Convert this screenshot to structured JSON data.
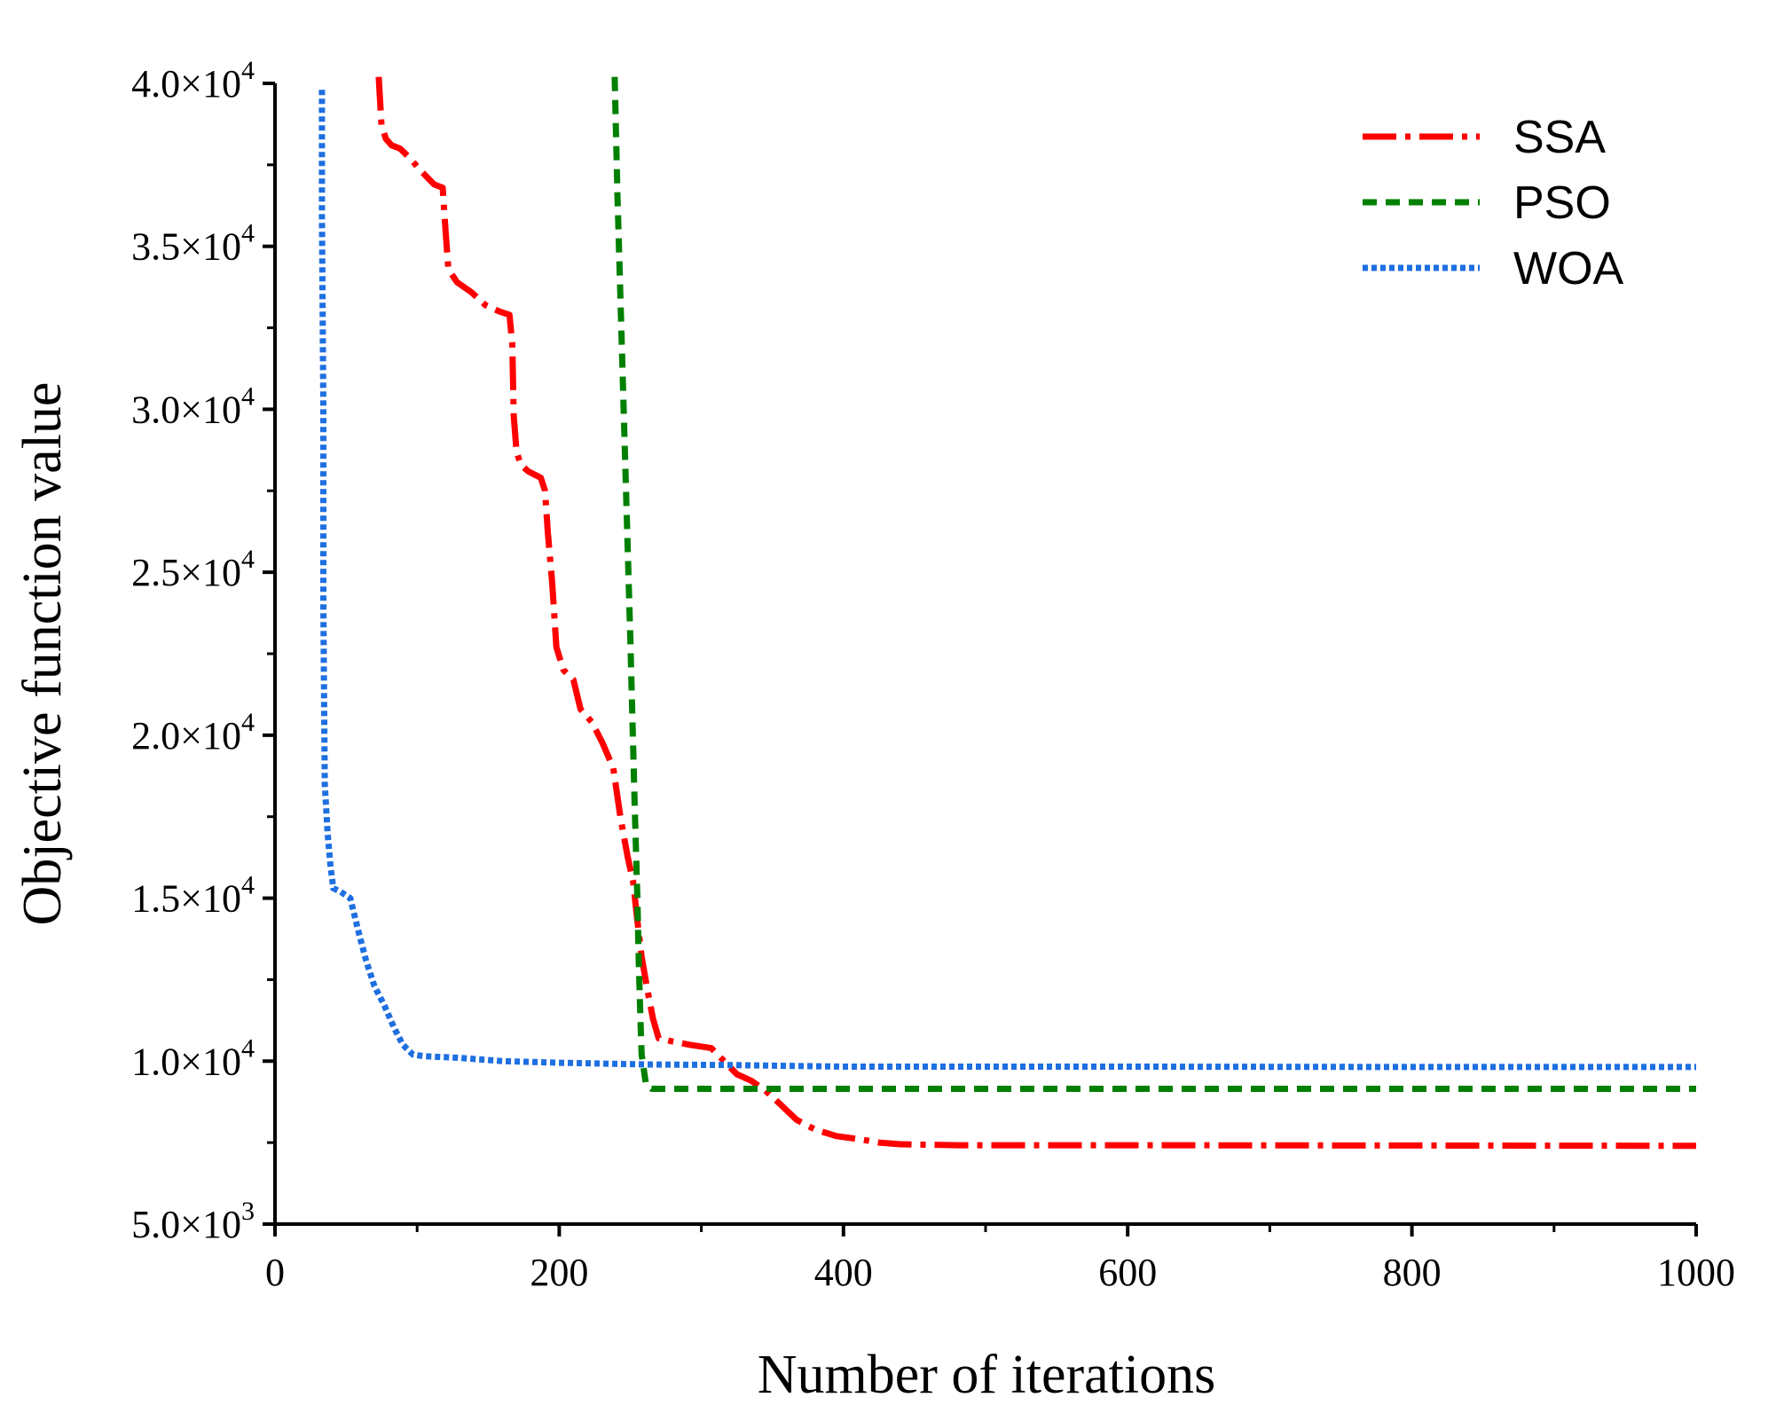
{
  "chart_data": {
    "type": "line",
    "title": "",
    "xlabel": "Number of iterations",
    "ylabel": "Objective function value",
    "xlim": [
      0,
      1000
    ],
    "ylim": [
      5000,
      40000
    ],
    "x_ticks": [
      0,
      200,
      400,
      600,
      800,
      1000
    ],
    "x_tick_labels": [
      "0",
      "200",
      "400",
      "600",
      "800",
      "1000"
    ],
    "x_minor_ticks": [
      100,
      300,
      500,
      700,
      900
    ],
    "y_ticks": [
      5000,
      10000,
      15000,
      20000,
      25000,
      30000,
      35000,
      40000
    ],
    "y_tick_labels": [
      {
        "mantissa": "5.0",
        "times": "×",
        "base": "10",
        "exp": "3"
      },
      {
        "mantissa": "1.0",
        "times": "×",
        "base": "10",
        "exp": "4"
      },
      {
        "mantissa": "1.5",
        "times": "×",
        "base": "10",
        "exp": "4"
      },
      {
        "mantissa": "2.0",
        "times": "×",
        "base": "10",
        "exp": "4"
      },
      {
        "mantissa": "2.5",
        "times": "×",
        "base": "10",
        "exp": "4"
      },
      {
        "mantissa": "3.0",
        "times": "×",
        "base": "10",
        "exp": "4"
      },
      {
        "mantissa": "3.5",
        "times": "×",
        "base": "10",
        "exp": "4"
      },
      {
        "mantissa": "4.0",
        "times": "×",
        "base": "10",
        "exp": "4"
      }
    ],
    "y_minor_ticks": [
      7500,
      12500,
      17500,
      22500,
      27500,
      32500,
      37500
    ],
    "grid": false,
    "legend_position": "top-right",
    "series": [
      {
        "name": "SSA",
        "color": "#ff0000",
        "style": "dash-dot",
        "points": [
          [
            73,
            40200
          ],
          [
            75,
            38700
          ],
          [
            78,
            38300
          ],
          [
            82,
            38100
          ],
          [
            88,
            38000
          ],
          [
            95,
            37700
          ],
          [
            103,
            37300
          ],
          [
            112,
            36900
          ],
          [
            118,
            36800
          ],
          [
            120,
            35500
          ],
          [
            122,
            34300
          ],
          [
            128,
            33900
          ],
          [
            138,
            33600
          ],
          [
            148,
            33200
          ],
          [
            158,
            33000
          ],
          [
            165,
            32900
          ],
          [
            167,
            32000
          ],
          [
            168,
            29800
          ],
          [
            170,
            28700
          ],
          [
            173,
            28300
          ],
          [
            178,
            28100
          ],
          [
            187,
            27900
          ],
          [
            190,
            27500
          ],
          [
            192,
            26200
          ],
          [
            195,
            24700
          ],
          [
            198,
            22700
          ],
          [
            203,
            22000
          ],
          [
            210,
            21700
          ],
          [
            215,
            20800
          ],
          [
            223,
            20400
          ],
          [
            230,
            19800
          ],
          [
            238,
            19000
          ],
          [
            243,
            17500
          ],
          [
            248,
            16300
          ],
          [
            252,
            15500
          ],
          [
            255,
            14300
          ],
          [
            258,
            13200
          ],
          [
            262,
            12200
          ],
          [
            266,
            11300
          ],
          [
            270,
            10700
          ],
          [
            280,
            10600
          ],
          [
            292,
            10500
          ],
          [
            307,
            10400
          ],
          [
            316,
            10000
          ],
          [
            325,
            9600
          ],
          [
            335,
            9400
          ],
          [
            345,
            9100
          ],
          [
            355,
            8700
          ],
          [
            367,
            8200
          ],
          [
            380,
            7900
          ],
          [
            395,
            7700
          ],
          [
            412,
            7600
          ],
          [
            425,
            7500
          ],
          [
            440,
            7450
          ],
          [
            480,
            7420
          ],
          [
            600,
            7420
          ],
          [
            800,
            7410
          ],
          [
            1000,
            7400
          ]
        ]
      },
      {
        "name": "PSO",
        "color": "#008000",
        "style": "dashed",
        "points": [
          [
            239,
            40200
          ],
          [
            241,
            36500
          ],
          [
            244,
            32000
          ],
          [
            247,
            27500
          ],
          [
            250,
            23000
          ],
          [
            253,
            18000
          ],
          [
            255,
            15000
          ],
          [
            256,
            13000
          ],
          [
            257,
            11500
          ],
          [
            258,
            10200
          ],
          [
            261,
            9300
          ],
          [
            265,
            9150
          ],
          [
            300,
            9150
          ],
          [
            500,
            9150
          ],
          [
            800,
            9150
          ],
          [
            1000,
            9150
          ]
        ]
      },
      {
        "name": "WOA",
        "color": "#1e6fe0",
        "style": "dotted",
        "points": [
          [
            33,
            39800
          ],
          [
            33,
            36000
          ],
          [
            34,
            30000
          ],
          [
            34,
            24000
          ],
          [
            35,
            18500
          ],
          [
            37,
            17000
          ],
          [
            39,
            16000
          ],
          [
            41,
            15300
          ],
          [
            46,
            15200
          ],
          [
            53,
            15000
          ],
          [
            58,
            14100
          ],
          [
            64,
            13100
          ],
          [
            70,
            12300
          ],
          [
            77,
            11700
          ],
          [
            84,
            11000
          ],
          [
            90,
            10500
          ],
          [
            97,
            10200
          ],
          [
            105,
            10150
          ],
          [
            130,
            10100
          ],
          [
            160,
            10000
          ],
          [
            200,
            9950
          ],
          [
            260,
            9900
          ],
          [
            320,
            9880
          ],
          [
            400,
            9830
          ],
          [
            600,
            9830
          ],
          [
            800,
            9820
          ],
          [
            1000,
            9820
          ]
        ]
      }
    ]
  }
}
